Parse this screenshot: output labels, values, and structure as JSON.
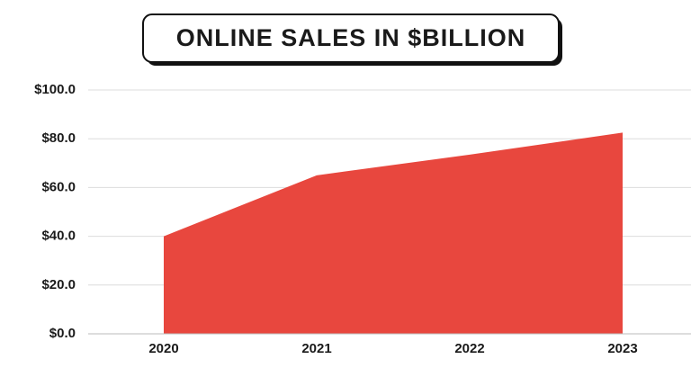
{
  "chart_data": {
    "type": "area",
    "title": "ONLINE SALES IN $BILLION",
    "categories": [
      "2020",
      "2021",
      "2022",
      "2023"
    ],
    "values": [
      40,
      65,
      73.5,
      82.5
    ],
    "color": "#e8473e",
    "ylim": [
      0,
      100
    ],
    "yticks": [
      {
        "value": 0,
        "label": "$0.0"
      },
      {
        "value": 20,
        "label": "$20.0"
      },
      {
        "value": 40,
        "label": "$40.0"
      },
      {
        "value": 60,
        "label": "$60.0"
      },
      {
        "value": 80,
        "label": "$80.0"
      },
      {
        "value": 100,
        "label": "$100.0"
      }
    ],
    "grid": true
  }
}
